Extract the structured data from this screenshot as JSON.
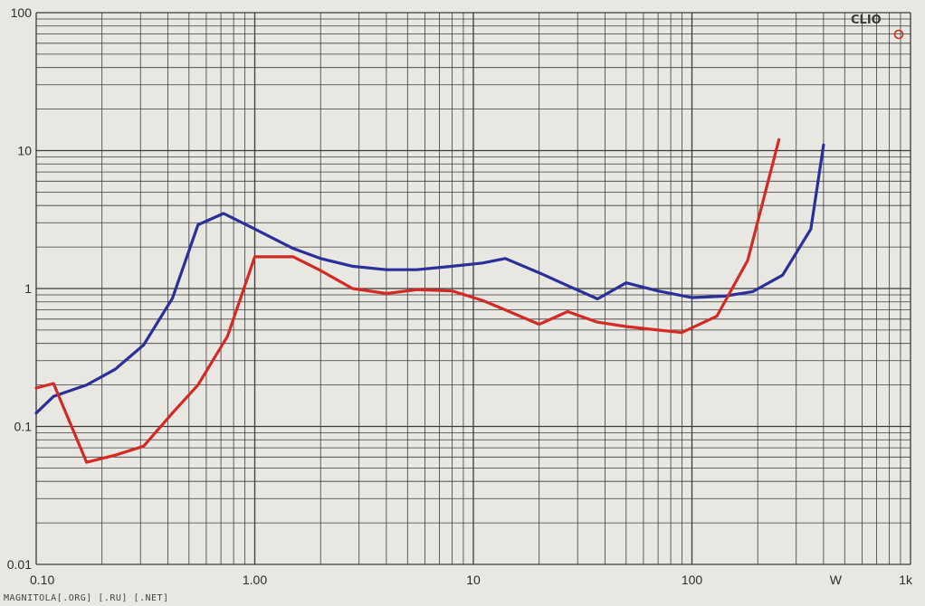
{
  "chart_data": {
    "type": "line",
    "x_scale": "log",
    "y_scale": "log",
    "xlim": [
      0.1,
      1000
    ],
    "ylim": [
      0.01,
      100
    ],
    "grid": true,
    "x_tick_labels": [
      {
        "value": 0.1,
        "label": "0.10"
      },
      {
        "value": 1,
        "label": "1.00"
      },
      {
        "value": 10,
        "label": "10"
      },
      {
        "value": 100,
        "label": "100"
      },
      {
        "value": 1000,
        "label": "1k"
      }
    ],
    "x_unit_label": "W",
    "y_tick_labels": [
      {
        "value": 100,
        "label": "100"
      },
      {
        "value": 10,
        "label": "10"
      },
      {
        "value": 1,
        "label": "1"
      },
      {
        "value": 0.1,
        "label": "0.1"
      },
      {
        "value": 0.01,
        "label": "0.01"
      }
    ],
    "series": [
      {
        "color": "#2b2f9a",
        "points": [
          [
            0.1,
            0.125
          ],
          [
            0.12,
            0.165
          ],
          [
            0.17,
            0.2
          ],
          [
            0.23,
            0.26
          ],
          [
            0.31,
            0.39
          ],
          [
            0.42,
            0.85
          ],
          [
            0.55,
            2.9
          ],
          [
            0.72,
            3.5
          ],
          [
            1.0,
            2.7
          ],
          [
            1.5,
            1.95
          ],
          [
            2.0,
            1.65
          ],
          [
            2.8,
            1.45
          ],
          [
            4.0,
            1.37
          ],
          [
            5.5,
            1.37
          ],
          [
            8.0,
            1.45
          ],
          [
            11,
            1.53
          ],
          [
            14,
            1.65
          ],
          [
            20,
            1.3
          ],
          [
            27,
            1.05
          ],
          [
            37,
            0.84
          ],
          [
            50,
            1.1
          ],
          [
            70,
            0.96
          ],
          [
            100,
            0.86
          ],
          [
            140,
            0.88
          ],
          [
            190,
            0.95
          ],
          [
            260,
            1.25
          ],
          [
            350,
            2.7
          ],
          [
            400,
            11
          ]
        ]
      },
      {
        "color": "#d22b25",
        "points": [
          [
            0.1,
            0.19
          ],
          [
            0.12,
            0.205
          ],
          [
            0.17,
            0.055
          ],
          [
            0.23,
            0.062
          ],
          [
            0.31,
            0.072
          ],
          [
            0.42,
            0.125
          ],
          [
            0.55,
            0.2
          ],
          [
            0.75,
            0.45
          ],
          [
            1.0,
            1.7
          ],
          [
            1.5,
            1.7
          ],
          [
            2.0,
            1.35
          ],
          [
            2.8,
            1.0
          ],
          [
            4.0,
            0.92
          ],
          [
            5.5,
            0.98
          ],
          [
            8.0,
            0.96
          ],
          [
            11,
            0.82
          ],
          [
            14,
            0.7
          ],
          [
            20,
            0.55
          ],
          [
            27,
            0.68
          ],
          [
            37,
            0.57
          ],
          [
            50,
            0.53
          ],
          [
            70,
            0.5
          ],
          [
            90,
            0.48
          ],
          [
            130,
            0.63
          ],
          [
            180,
            1.6
          ],
          [
            250,
            12
          ]
        ]
      }
    ]
  },
  "logo": {
    "text": "CLIO"
  },
  "watermark": {
    "text": "MAGNITOLA[.ORG] [.RU] [.NET]"
  }
}
